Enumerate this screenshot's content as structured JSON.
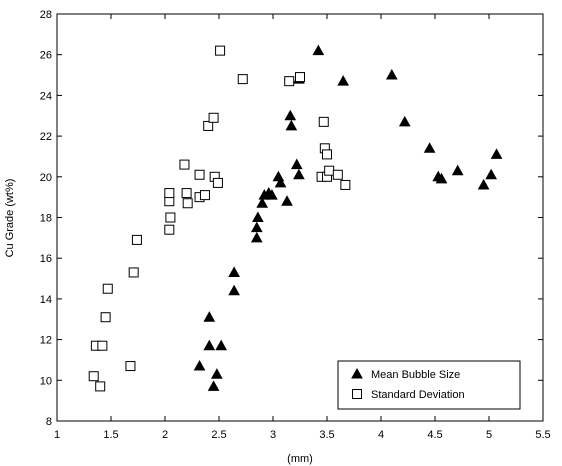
{
  "chart_data": {
    "type": "scatter",
    "title": "",
    "xlabel": "(mm)",
    "ylabel": "Cu Grade (wt%)",
    "xlim": [
      1,
      5.5
    ],
    "ylim": [
      8,
      28
    ],
    "x_ticks": [
      1,
      1.5,
      2,
      2.5,
      3,
      3.5,
      4,
      4.5,
      5,
      5.5
    ],
    "y_ticks": [
      8,
      10,
      12,
      14,
      16,
      18,
      20,
      22,
      24,
      26,
      28
    ],
    "grid": false,
    "legend_position": "bottom-right",
    "series": [
      {
        "name": "Mean Bubble Size",
        "marker": "filled-triangle",
        "color": "#000000",
        "points": [
          [
            2.32,
            10.7
          ],
          [
            2.41,
            11.7
          ],
          [
            2.41,
            13.1
          ],
          [
            2.45,
            9.7
          ],
          [
            2.48,
            10.3
          ],
          [
            2.52,
            11.7
          ],
          [
            2.64,
            15.3
          ],
          [
            2.64,
            14.4
          ],
          [
            2.85,
            17.0
          ],
          [
            2.85,
            17.5
          ],
          [
            2.86,
            18.0
          ],
          [
            2.9,
            18.7
          ],
          [
            2.92,
            19.1
          ],
          [
            2.96,
            19.2
          ],
          [
            2.99,
            19.1
          ],
          [
            3.05,
            20.0
          ],
          [
            3.07,
            19.7
          ],
          [
            3.13,
            18.8
          ],
          [
            3.16,
            23.0
          ],
          [
            3.17,
            22.5
          ],
          [
            3.22,
            20.6
          ],
          [
            3.24,
            20.1
          ],
          [
            3.24,
            24.8
          ],
          [
            3.42,
            26.2
          ],
          [
            3.65,
            24.7
          ],
          [
            4.1,
            25.0
          ],
          [
            4.22,
            22.7
          ],
          [
            4.45,
            21.4
          ],
          [
            4.53,
            20.0
          ],
          [
            4.56,
            19.9
          ],
          [
            4.71,
            20.3
          ],
          [
            4.95,
            19.6
          ],
          [
            5.02,
            20.1
          ],
          [
            5.07,
            21.1
          ]
        ]
      },
      {
        "name": "Standard Deviation",
        "marker": "open-square",
        "color": "#000000",
        "points": [
          [
            1.34,
            10.2
          ],
          [
            1.36,
            11.7
          ],
          [
            1.4,
            9.7
          ],
          [
            1.42,
            11.7
          ],
          [
            1.45,
            13.1
          ],
          [
            1.47,
            14.5
          ],
          [
            1.68,
            10.7
          ],
          [
            1.71,
            15.3
          ],
          [
            1.74,
            16.9
          ],
          [
            2.04,
            17.4
          ],
          [
            2.05,
            18.0
          ],
          [
            2.04,
            18.8
          ],
          [
            2.04,
            19.2
          ],
          [
            2.18,
            20.6
          ],
          [
            2.2,
            19.2
          ],
          [
            2.21,
            18.7
          ],
          [
            2.32,
            20.1
          ],
          [
            2.32,
            19.0
          ],
          [
            2.37,
            19.1
          ],
          [
            2.4,
            22.5
          ],
          [
            2.45,
            22.9
          ],
          [
            2.46,
            20.0
          ],
          [
            2.49,
            19.7
          ],
          [
            2.51,
            26.2
          ],
          [
            2.72,
            24.8
          ],
          [
            3.15,
            24.7
          ],
          [
            3.25,
            24.9
          ],
          [
            3.45,
            20.0
          ],
          [
            3.47,
            22.7
          ],
          [
            3.48,
            21.4
          ],
          [
            3.5,
            21.1
          ],
          [
            3.5,
            20.0
          ],
          [
            3.52,
            20.3
          ],
          [
            3.6,
            20.1
          ],
          [
            3.67,
            19.6
          ]
        ]
      }
    ]
  }
}
